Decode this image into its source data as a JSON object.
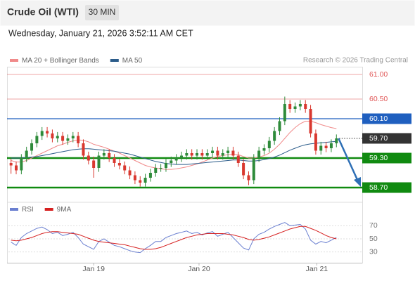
{
  "chart_data": {
    "type": "candlestick",
    "title": "Crude Oil (WTI)",
    "interval": "30 MIN",
    "timestamp": "Wednesday, January 21, 2026 3:52:11 AM CET",
    "source": "Research © 2026 Trading Central",
    "up_color": "#2e8b3a",
    "down_color": "#d9382f",
    "candles": {
      "open": [
        59.2,
        59.15,
        59.05,
        59.3,
        59.45,
        59.6,
        59.75,
        59.85,
        59.8,
        59.7,
        59.75,
        59.65,
        59.7,
        59.75,
        59.6,
        59.35,
        59.25,
        59.1,
        59.35,
        59.4,
        59.3,
        59.2,
        59.15,
        59.05,
        58.95,
        58.85,
        58.8,
        58.9,
        59.0,
        59.1,
        59.1,
        59.2,
        59.25,
        59.3,
        59.35,
        59.4,
        59.35,
        59.4,
        59.35,
        59.4,
        59.45,
        59.35,
        59.4,
        59.45,
        59.35,
        59.2,
        58.95,
        58.85,
        59.3,
        59.45,
        59.5,
        59.65,
        59.85,
        60.05,
        60.4,
        60.3,
        60.35,
        60.4,
        60.3,
        59.8,
        59.45,
        59.55,
        59.5,
        59.6
      ],
      "high": [
        59.28,
        59.23,
        59.38,
        59.53,
        59.68,
        59.83,
        59.93,
        59.93,
        59.88,
        59.83,
        59.83,
        59.78,
        59.83,
        59.83,
        59.68,
        59.43,
        59.33,
        59.43,
        59.48,
        59.48,
        59.38,
        59.28,
        59.23,
        59.13,
        59.03,
        58.93,
        58.98,
        59.08,
        59.18,
        59.18,
        59.28,
        59.33,
        59.38,
        59.43,
        59.48,
        59.48,
        59.48,
        59.48,
        59.48,
        59.53,
        59.53,
        59.48,
        59.53,
        59.53,
        59.43,
        59.28,
        59.03,
        59.38,
        59.53,
        59.58,
        59.73,
        59.93,
        60.13,
        60.55,
        60.48,
        60.43,
        60.48,
        60.48,
        60.38,
        59.88,
        59.63,
        59.63,
        59.68,
        59.78
      ],
      "low": [
        58.98,
        58.97,
        58.97,
        59.22,
        59.37,
        59.52,
        59.67,
        59.72,
        59.62,
        59.62,
        59.57,
        59.57,
        59.62,
        59.52,
        59.27,
        59.17,
        58.9,
        59.02,
        59.27,
        59.22,
        59.12,
        59.07,
        58.97,
        58.87,
        58.77,
        58.72,
        58.72,
        58.82,
        58.92,
        59.02,
        59.02,
        59.12,
        59.17,
        59.22,
        59.27,
        59.27,
        59.27,
        59.27,
        59.27,
        59.32,
        59.27,
        59.27,
        59.32,
        59.27,
        59.12,
        58.87,
        58.75,
        58.77,
        59.22,
        59.37,
        59.42,
        59.57,
        59.77,
        59.97,
        60.22,
        60.22,
        60.27,
        60.22,
        59.72,
        59.37,
        59.37,
        59.42,
        59.42,
        59.52
      ],
      "close": [
        59.15,
        59.05,
        59.3,
        59.45,
        59.6,
        59.75,
        59.85,
        59.8,
        59.7,
        59.75,
        59.65,
        59.7,
        59.75,
        59.6,
        59.35,
        59.25,
        59.1,
        59.35,
        59.4,
        59.3,
        59.2,
        59.15,
        59.05,
        58.95,
        58.85,
        58.8,
        58.9,
        59.0,
        59.1,
        59.1,
        59.2,
        59.25,
        59.3,
        59.35,
        59.4,
        59.35,
        59.4,
        59.35,
        59.4,
        59.45,
        59.35,
        59.4,
        59.45,
        59.35,
        59.2,
        58.95,
        58.85,
        59.3,
        59.45,
        59.5,
        59.65,
        59.85,
        60.05,
        60.4,
        60.3,
        60.35,
        60.4,
        60.3,
        59.8,
        59.45,
        59.55,
        59.5,
        59.6,
        59.7
      ]
    },
    "overlays": [
      {
        "name": "MA 20 + Bollinger Bands",
        "color": "#f08a8a",
        "values": [
          59.25,
          59.22,
          59.22,
          59.25,
          59.3,
          59.35,
          59.4,
          59.45,
          59.5,
          59.55,
          59.58,
          59.62,
          59.65,
          59.67,
          59.66,
          59.63,
          59.58,
          59.55,
          59.52,
          59.48,
          59.44,
          59.4,
          59.35,
          59.3,
          59.25,
          59.2,
          59.15,
          59.12,
          59.1,
          59.08,
          59.07,
          59.07,
          59.08,
          59.1,
          59.12,
          59.15,
          59.18,
          59.22,
          59.26,
          59.3,
          59.33,
          59.35,
          59.37,
          59.38,
          59.37,
          59.33,
          59.3,
          59.3,
          59.32,
          59.35,
          59.4,
          59.48,
          59.58,
          59.7,
          59.82,
          59.92,
          60.0,
          60.05,
          60.05,
          60.02,
          59.98,
          59.95,
          59.92,
          59.9
        ]
      },
      {
        "name": "MA 50",
        "color": "#2b5c8a",
        "values": [
          59.3,
          59.3,
          59.3,
          59.31,
          59.32,
          59.33,
          59.35,
          59.37,
          59.39,
          59.41,
          59.43,
          59.45,
          59.47,
          59.48,
          59.49,
          59.49,
          59.48,
          59.47,
          59.46,
          59.45,
          59.44,
          59.42,
          59.4,
          59.38,
          59.35,
          59.32,
          59.29,
          59.26,
          59.23,
          59.21,
          59.19,
          59.18,
          59.17,
          59.17,
          59.17,
          59.18,
          59.19,
          59.2,
          59.21,
          59.22,
          59.23,
          59.24,
          59.25,
          59.26,
          59.26,
          59.25,
          59.24,
          59.24,
          59.25,
          59.27,
          59.29,
          59.32,
          59.36,
          59.41,
          59.46,
          59.5,
          59.54,
          59.57,
          59.59,
          59.6,
          59.61,
          59.62,
          59.63,
          59.64
        ]
      }
    ],
    "ylim": [
      58.45,
      61.15
    ],
    "levels": [
      {
        "value": 61,
        "label": "61.00",
        "color": "#e05555",
        "boxed": false,
        "dotted": false
      },
      {
        "value": 60.5,
        "label": "60.50",
        "color": "#e05555",
        "boxed": false,
        "dotted": false
      },
      {
        "value": 60.1,
        "label": "60.10",
        "color": "#1f5fbf",
        "boxed": true,
        "dotted": false
      },
      {
        "value": 59.7,
        "label": "59.70",
        "color": "#333333",
        "boxed": true,
        "dotted": true
      },
      {
        "value": 59.3,
        "label": "59.30",
        "color": "#108a10",
        "boxed": true,
        "dotted": false
      },
      {
        "value": 58.7,
        "label": "58.70",
        "color": "#108a10",
        "boxed": true,
        "dotted": false
      }
    ],
    "forecast_arrow": {
      "to": 58.7,
      "color": "#2e6fb5"
    },
    "xlim": [
      -0.5,
      68
    ],
    "xticks": [
      {
        "value": 16,
        "label": "Jan 19"
      },
      {
        "value": 36.4,
        "label": "Jan 20"
      },
      {
        "value": 59.2,
        "label": "Jan 21"
      }
    ],
    "rsi": {
      "ylim": [
        20,
        80
      ],
      "yticks": [
        70,
        50,
        30
      ],
      "series": [
        {
          "name": "RSI",
          "color": "#6a7fd0",
          "values": [
            45,
            40,
            52,
            58,
            62,
            66,
            68,
            64,
            58,
            60,
            55,
            57,
            60,
            52,
            42,
            38,
            34,
            46,
            50,
            45,
            40,
            38,
            35,
            32,
            30,
            29,
            35,
            40,
            46,
            46,
            52,
            55,
            58,
            60,
            62,
            58,
            60,
            56,
            59,
            61,
            54,
            57,
            60,
            52,
            44,
            36,
            33,
            50,
            57,
            60,
            65,
            69,
            72,
            75,
            70,
            71,
            72,
            65,
            48,
            42,
            46,
            44,
            48,
            52
          ]
        },
        {
          "name": "9MA",
          "color": "#d62020",
          "values": [
            48,
            47,
            48,
            50,
            52,
            55,
            58,
            60,
            61,
            61,
            60,
            59,
            58,
            57,
            54,
            51,
            48,
            46,
            45,
            44,
            43,
            42,
            41,
            39,
            37,
            35,
            34,
            34,
            35,
            37,
            40,
            43,
            46,
            49,
            52,
            54,
            56,
            57,
            58,
            58,
            58,
            58,
            57,
            56,
            54,
            52,
            49,
            48,
            49,
            51,
            53,
            56,
            59,
            62,
            65,
            67,
            69,
            69,
            66,
            63,
            59,
            55,
            52,
            50
          ]
        }
      ]
    }
  }
}
